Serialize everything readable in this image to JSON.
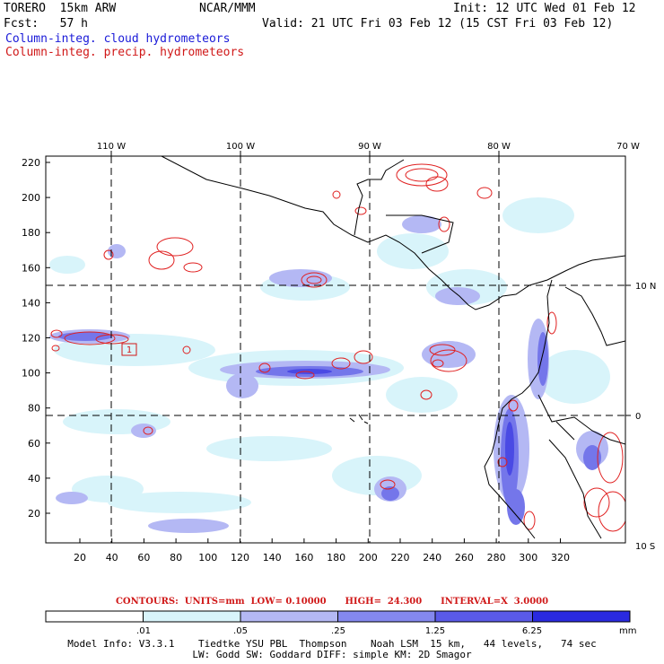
{
  "header": {
    "model": "TORERO  15km ARW",
    "center": "NCAR/MMM",
    "init": "Init: 12 UTC Wed 01 Feb 12",
    "fcst": "Fcst:   57 h",
    "valid": "Valid: 21 UTC Fri 03 Feb 12 (15 CST Fri 03 Feb 12)",
    "field1": "Column-integ. cloud hydrometeors",
    "field2": "Column-integ. precip. hydrometeors"
  },
  "map": {
    "lon_labels": [
      "110 W",
      "100 W",
      "90 W",
      "80 W",
      "70 W"
    ],
    "lat_labels": [
      "10 N",
      "0",
      "10 S"
    ],
    "y_grid_labels": [
      "220",
      "200",
      "180",
      "160",
      "140",
      "120",
      "100",
      "80",
      "60",
      "40",
      "20"
    ],
    "x_grid_labels": [
      "20",
      "40",
      "60",
      "80",
      "100",
      "120",
      "140",
      "160",
      "180",
      "200",
      "220",
      "240",
      "260",
      "280",
      "300",
      "320"
    ],
    "marker_label": "1"
  },
  "contours": {
    "text": "CONTOURS:  UNITS=mm  LOW= 0.10000      HIGH=  24.300      INTERVAL=X  3.0000"
  },
  "colorbar": {
    "labels": [
      ".01",
      ".05",
      ".25",
      "1.25",
      "6.25"
    ],
    "unit": "mm",
    "colors": [
      "#ffffff",
      "#d8f4fa",
      "#b4b8f4",
      "#8488ee",
      "#5a5ae8",
      "#2a2ae0"
    ]
  },
  "model_info": {
    "line1": "Model Info: V3.3.1    Tiedtke YSU PBL  Thompson    Noah LSM  15 km,   44 levels,   74 sec",
    "line2": "LW: Godd SW: Goddard DIFF: simple KM: 2D Smagor"
  }
}
